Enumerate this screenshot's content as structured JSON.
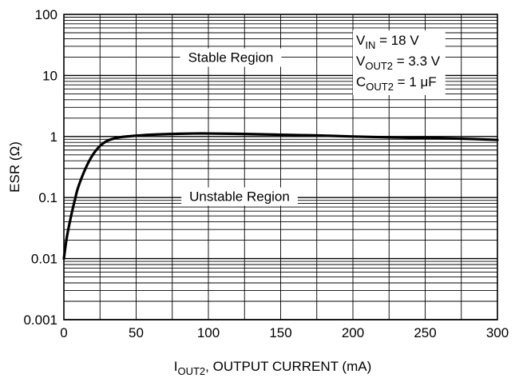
{
  "chart_data": {
    "type": "line",
    "xscale": "linear",
    "yscale": "log",
    "xlim": [
      0,
      300
    ],
    "ylim": [
      0.001,
      100
    ],
    "grid": true,
    "x_ticks": [
      "0",
      "50",
      "100",
      "150",
      "200",
      "250",
      "300"
    ],
    "y_ticks": [
      "0.001",
      "0.01",
      "0.1",
      "1",
      "10",
      "100"
    ],
    "ylabel": "ESR (Ω)",
    "xlabel": {
      "prefix": "I",
      "sub": "OUT2",
      "rest": ", OUTPUT CURRENT (mA)"
    },
    "annotations": {
      "stable": "Stable Region",
      "unstable": "Unstable Region"
    },
    "conditions": [
      {
        "prefix": "V",
        "sub": "IN",
        "rest": " = 18 V"
      },
      {
        "prefix": "V",
        "sub": "OUT2",
        "rest": " = 3.3 V"
      },
      {
        "prefix": "C",
        "sub": "OUT2",
        "rest": " = 1 μF"
      }
    ],
    "series": [
      {
        "x": [
          0,
          2,
          5,
          8,
          10,
          15,
          20,
          25,
          30,
          35,
          40,
          50,
          60,
          75,
          90,
          100,
          125,
          150,
          175,
          200,
          225,
          250,
          275,
          300
        ],
        "y": [
          0.01,
          0.022,
          0.05,
          0.1,
          0.15,
          0.3,
          0.5,
          0.7,
          0.85,
          0.93,
          0.98,
          1.03,
          1.07,
          1.1,
          1.12,
          1.12,
          1.1,
          1.07,
          1.04,
          1.0,
          0.97,
          0.94,
          0.92,
          0.88
        ]
      }
    ]
  }
}
